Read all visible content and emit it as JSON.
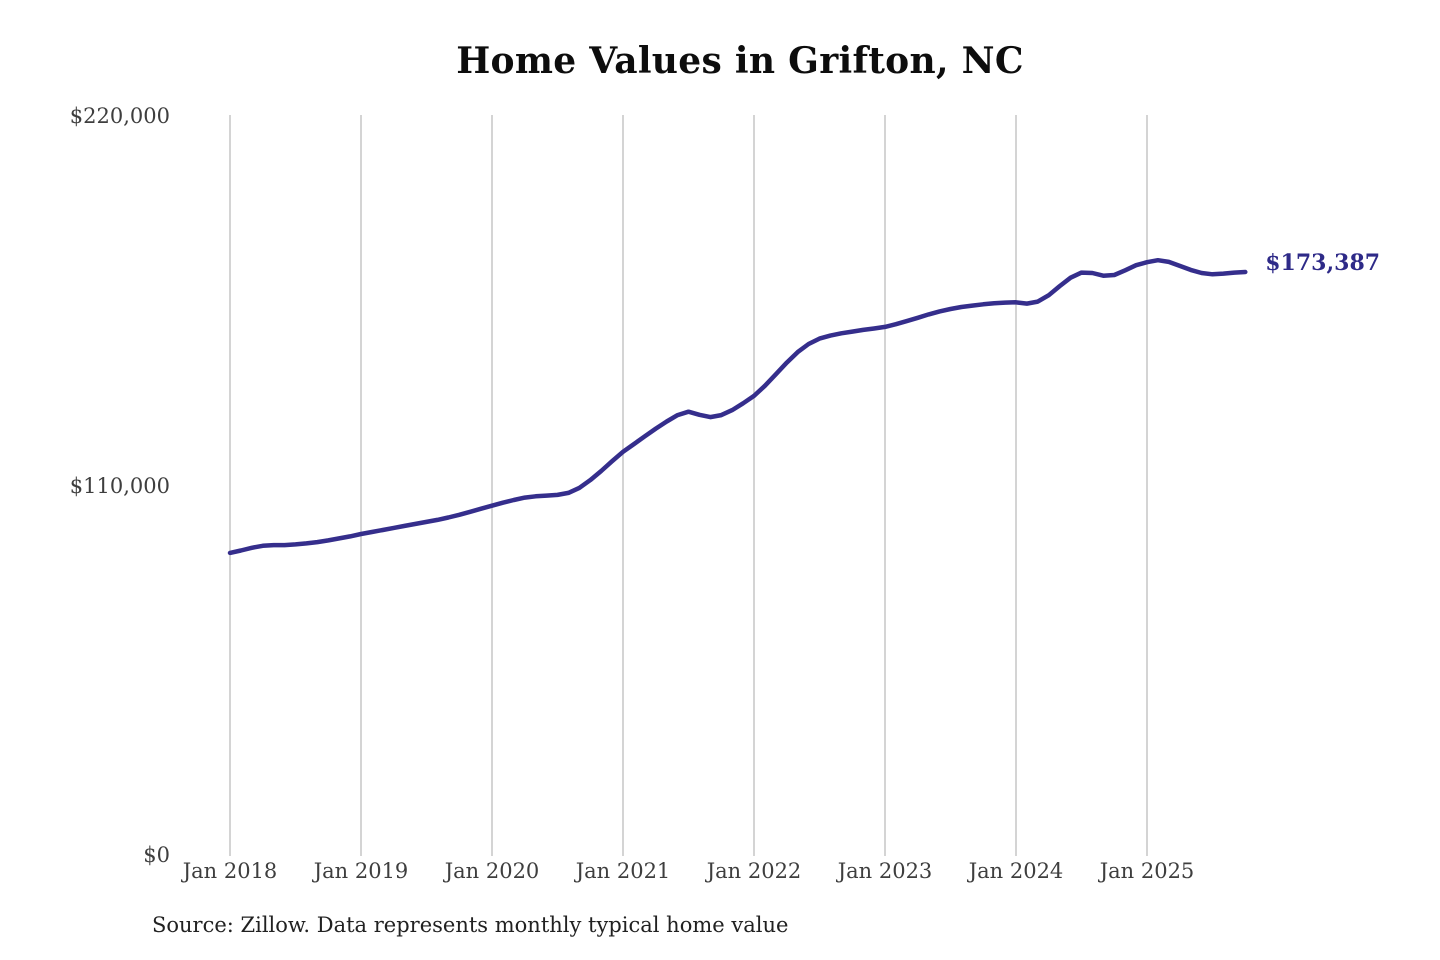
{
  "page": {
    "background_color": "#ffffff"
  },
  "chart_data": {
    "type": "line",
    "title": "Home Values in Grifton, NC",
    "source_note": "Source: Zillow. Data represents monthly typical home value",
    "series_name": "Monthly typical home value",
    "unit": "USD",
    "x_monthly_start": "Jan 2018",
    "x_monthly_end": "Oct 2025",
    "x_tick_labels": [
      "Jan 2018",
      "Jan 2019",
      "Jan 2020",
      "Jan 2021",
      "Jan 2022",
      "Jan 2023",
      "Jan 2024",
      "Jan 2025"
    ],
    "y_tick_labels": [
      "$0",
      "$110,000",
      "$220,000"
    ],
    "ylim": [
      0,
      220000
    ],
    "grid": "vertical-only",
    "legend": "none",
    "end_label": "$173,387",
    "last_value": 173387,
    "line_color": "#352e8c",
    "grid_color": "#c6c6c6",
    "values": [
      90000,
      90700,
      91500,
      92100,
      92300,
      92300,
      92500,
      92800,
      93200,
      93700,
      94300,
      94900,
      95600,
      96200,
      96800,
      97400,
      98000,
      98600,
      99200,
      99800,
      100500,
      101300,
      102200,
      103100,
      104000,
      104900,
      105700,
      106400,
      106800,
      107000,
      107200,
      107800,
      109300,
      111600,
      114300,
      117200,
      120000,
      122300,
      124600,
      126900,
      129000,
      130900,
      131900,
      131000,
      130300,
      130900,
      132400,
      134400,
      136600,
      139600,
      143000,
      146500,
      149600,
      152000,
      153600,
      154500,
      155200,
      155700,
      156200,
      156600,
      157100,
      157900,
      158800,
      159800,
      160800,
      161700,
      162400,
      163000,
      163400,
      163800,
      164100,
      164300,
      164400,
      164000,
      164600,
      166500,
      169200,
      171700,
      173200,
      173100,
      172300,
      172500,
      173900,
      175400,
      176300,
      176900,
      176400,
      175200,
      174000,
      173100,
      172700,
      172900,
      173200,
      173387
    ]
  }
}
